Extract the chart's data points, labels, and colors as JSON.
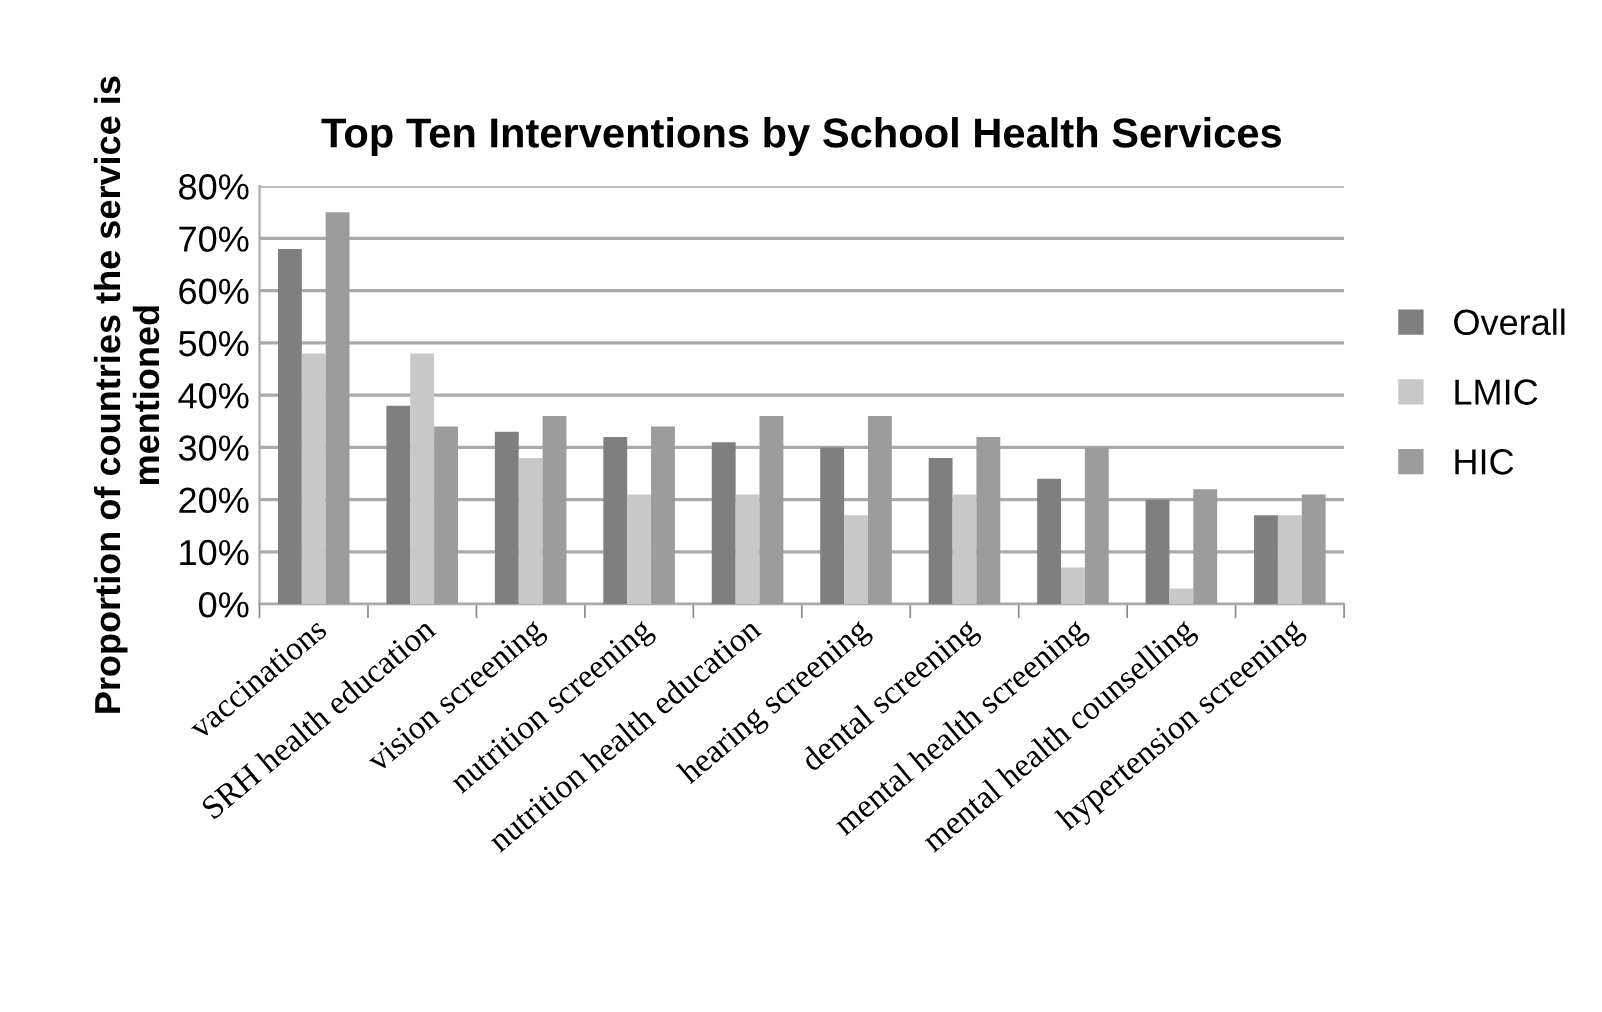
{
  "chart_data": {
    "type": "bar",
    "title": "Top Ten Interventions by School Health Services",
    "ylabel": "Proportion of countries the service is mentioned",
    "categories": [
      "vaccinations",
      "SRH health education",
      "vision screening",
      "nutrition screening",
      "nutrition health education",
      "hearing screening",
      "dental screening",
      "mental health screening",
      "mental health counselling",
      "hypertension screening"
    ],
    "series": [
      {
        "name": "Overall",
        "color": "#7f7f7f",
        "values": [
          68,
          38,
          33,
          32,
          31,
          30,
          28,
          24,
          20,
          17
        ]
      },
      {
        "name": "LMIC",
        "color": "#c8c8c8",
        "values": [
          48,
          48,
          28,
          21,
          21,
          17,
          21,
          7,
          3,
          17
        ]
      },
      {
        "name": "HIC",
        "color": "#9c9c9c",
        "values": [
          75,
          34,
          36,
          34,
          36,
          36,
          32,
          30,
          22,
          21
        ]
      }
    ],
    "ylim": [
      0,
      80
    ],
    "yticks": [
      {
        "value": 0,
        "label": "0%"
      },
      {
        "value": 10,
        "label": "10%"
      },
      {
        "value": 20,
        "label": "20%"
      },
      {
        "value": 30,
        "label": "30%"
      },
      {
        "value": 40,
        "label": "40%"
      },
      {
        "value": 50,
        "label": "50%"
      },
      {
        "value": 60,
        "label": "60%"
      },
      {
        "value": 70,
        "label": "70%"
      },
      {
        "value": 80,
        "label": "80%"
      }
    ],
    "grid": "y",
    "legend": "right"
  }
}
